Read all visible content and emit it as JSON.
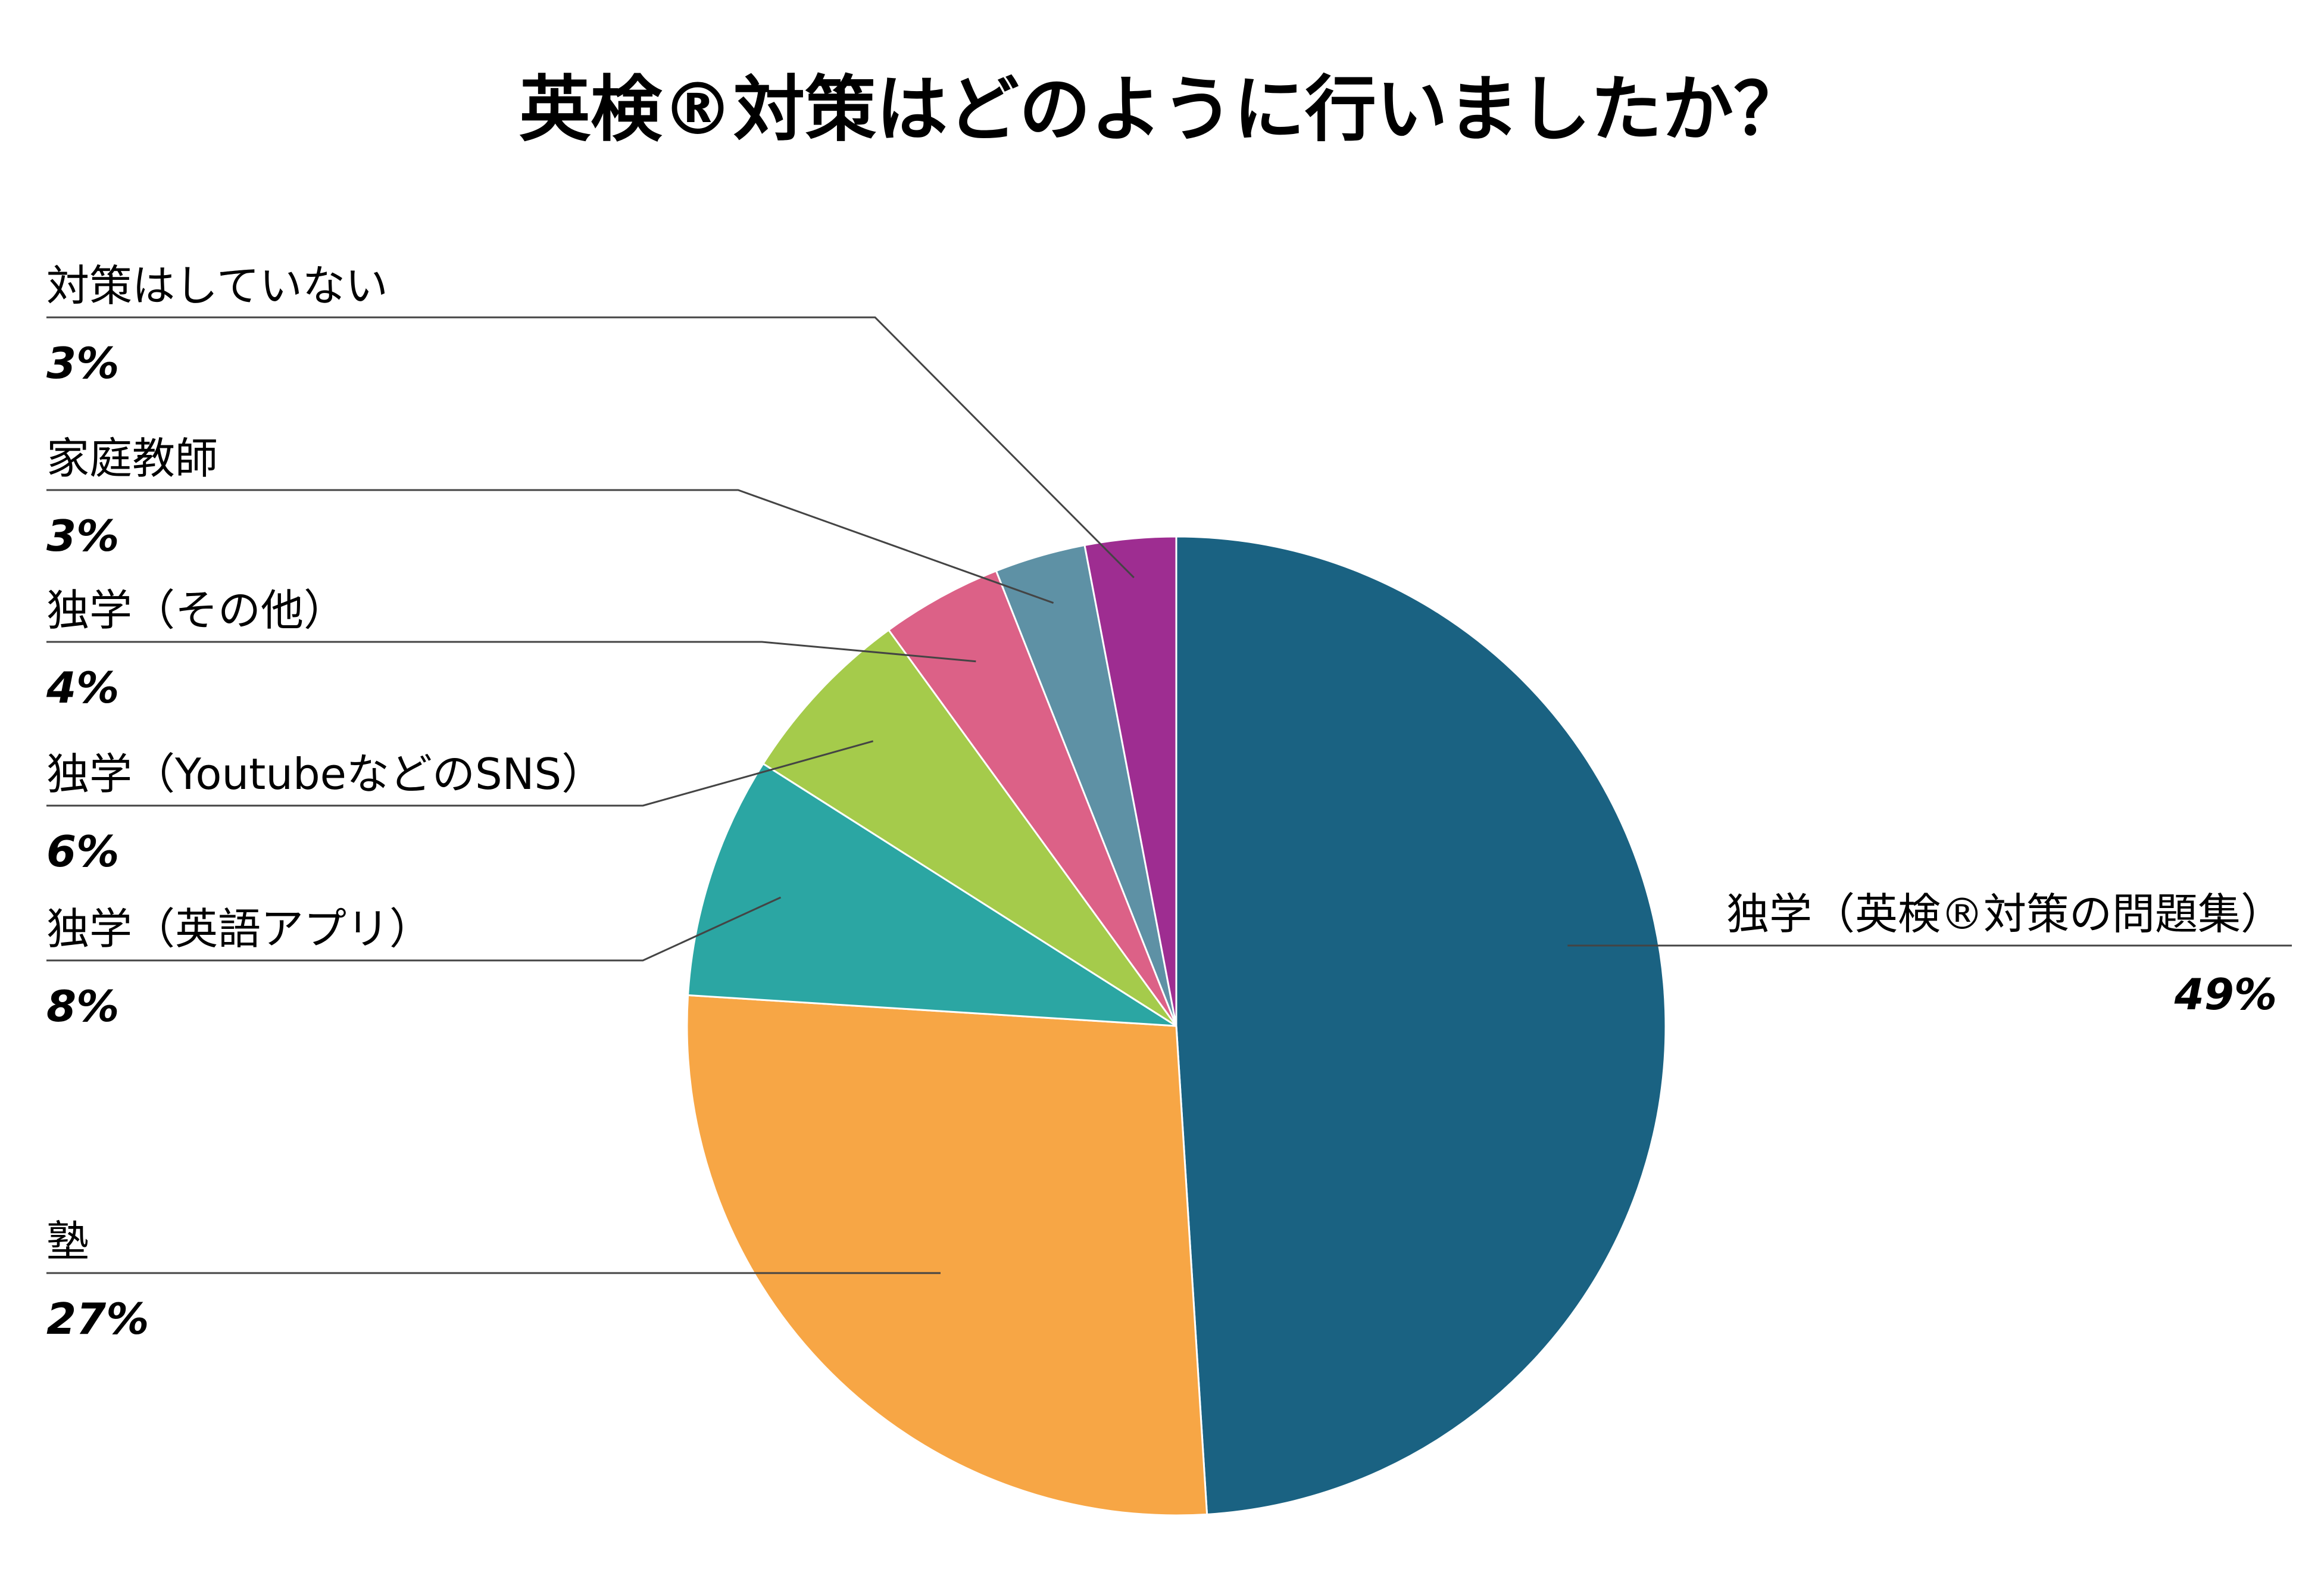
{
  "chart_data": {
    "type": "pie",
    "title": "英検®対策はどのように行いましたか？",
    "slices": [
      {
        "label": "独学（英検®対策の問題集）",
        "value": 49,
        "value_label": "49%",
        "color": "#1a6282"
      },
      {
        "label": "塾",
        "value": 27,
        "value_label": "27%",
        "color": "#f7a645"
      },
      {
        "label": "独学（英語アプリ）",
        "value": 8,
        "value_label": "8%",
        "color": "#2ba6a3"
      },
      {
        "label": "独学（YoutubeなどのSNS）",
        "value": 6,
        "value_label": "6%",
        "color": "#a5cb4b"
      },
      {
        "label": "独学（その他）",
        "value": 4,
        "value_label": "4%",
        "color": "#dc6187"
      },
      {
        "label": "家庭教師",
        "value": 3,
        "value_label": "3%",
        "color": "#5e91a5"
      },
      {
        "label": "対策はしていない",
        "value": 3,
        "value_label": "3%",
        "color": "#9e2d91"
      }
    ]
  }
}
